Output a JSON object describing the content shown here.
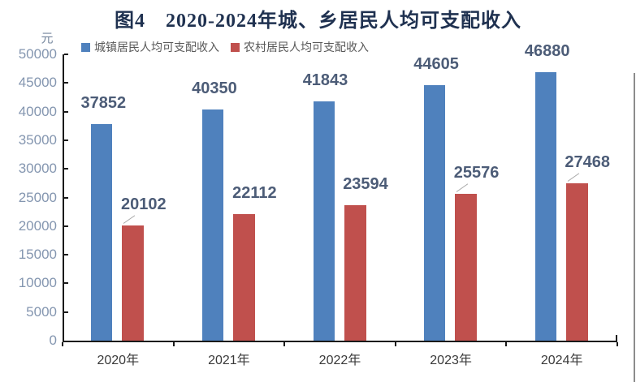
{
  "chart_data": {
    "type": "bar",
    "title": "图4　2020-2024年城、乡居民人均可支配收入",
    "unit": "元",
    "categories": [
      "2020年",
      "2021年",
      "2022年",
      "2023年",
      "2024年"
    ],
    "series": [
      {
        "name": "城镇居民人均可支配收入",
        "color": "#4F81BD",
        "values": [
          37852,
          40350,
          41843,
          44605,
          46880
        ]
      },
      {
        "name": "农村居民人均可支配收入",
        "color": "#C0504D",
        "values": [
          20102,
          22112,
          23594,
          25576,
          27468
        ],
        "label_leader_lines": [
          true,
          false,
          false,
          true,
          true
        ]
      }
    ],
    "ylim": [
      0,
      50000
    ],
    "ytick_step": 5000,
    "yticks": [
      0,
      5000,
      10000,
      15000,
      20000,
      25000,
      30000,
      35000,
      40000,
      45000,
      50000
    ],
    "legend_position": "top-left-inside",
    "grid": false
  }
}
